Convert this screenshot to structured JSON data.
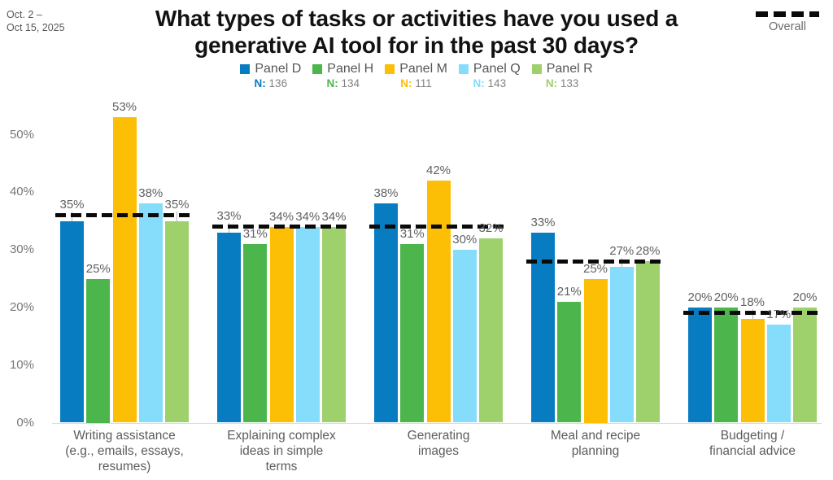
{
  "meta": {
    "date_line1": "Oct. 2 –",
    "date_line2": "Oct 15, 2025"
  },
  "title": {
    "line1": "What types of tasks or activities have you used a",
    "line2": "generative AI tool for in the past 30 days?"
  },
  "overall_legend": {
    "label": "Overall",
    "color": "#0a0a0a",
    "style": "dashed"
  },
  "legend": {
    "n_prefix": "N:"
  },
  "chart_data": {
    "type": "bar",
    "value_suffix": "%",
    "title": "What types of tasks or activities have you used a generative AI tool for in the past 30 days?",
    "xlabel": "",
    "ylabel": "",
    "ylim": [
      0,
      55
    ],
    "grid": false,
    "legend_position": "top-center",
    "categories": [
      {
        "label": "Writing assistance (e.g., emails, essays, resumes)",
        "lines": [
          "Writing assistance",
          "(e.g., emails, essays,",
          "resumes)"
        ]
      },
      {
        "label": "Explaining complex ideas in simple terms",
        "lines": [
          "Explaining complex",
          "ideas in simple",
          "terms"
        ]
      },
      {
        "label": "Generating images",
        "lines": [
          "Generating",
          "images"
        ]
      },
      {
        "label": "Meal and recipe planning",
        "lines": [
          "Meal and recipe",
          "planning"
        ]
      },
      {
        "label": "Budgeting / financial advice",
        "lines": [
          "Budgeting /",
          "financial advice"
        ]
      }
    ],
    "series": [
      {
        "name": "Panel D",
        "n": "136",
        "color": "#077cc1",
        "values": [
          35,
          33,
          38,
          33,
          20
        ]
      },
      {
        "name": "Panel H",
        "n": "134",
        "color": "#4cb64c",
        "values": [
          25,
          31,
          31,
          21,
          20
        ]
      },
      {
        "name": "Panel M",
        "n": "111",
        "color": "#fdbe06",
        "values": [
          53,
          34,
          42,
          25,
          18
        ]
      },
      {
        "name": "Panel Q",
        "n": "143",
        "color": "#85dcfb",
        "values": [
          38,
          34,
          30,
          27,
          17
        ]
      },
      {
        "name": "Panel R",
        "n": "133",
        "color": "#9ed06c",
        "values": [
          35,
          34,
          32,
          28,
          20
        ]
      }
    ],
    "overall": {
      "name": "Overall",
      "line_style": "dashed",
      "color": "#0a0a0a",
      "values": [
        36,
        34,
        34,
        28,
        19
      ]
    },
    "y_ticks": [
      {
        "value": 0,
        "label": "0%"
      },
      {
        "value": 10,
        "label": "10%"
      },
      {
        "value": 20,
        "label": "20%"
      },
      {
        "value": 30,
        "label": "30%"
      },
      {
        "value": 40,
        "label": "40%"
      },
      {
        "value": 50,
        "label": "50%"
      }
    ]
  }
}
